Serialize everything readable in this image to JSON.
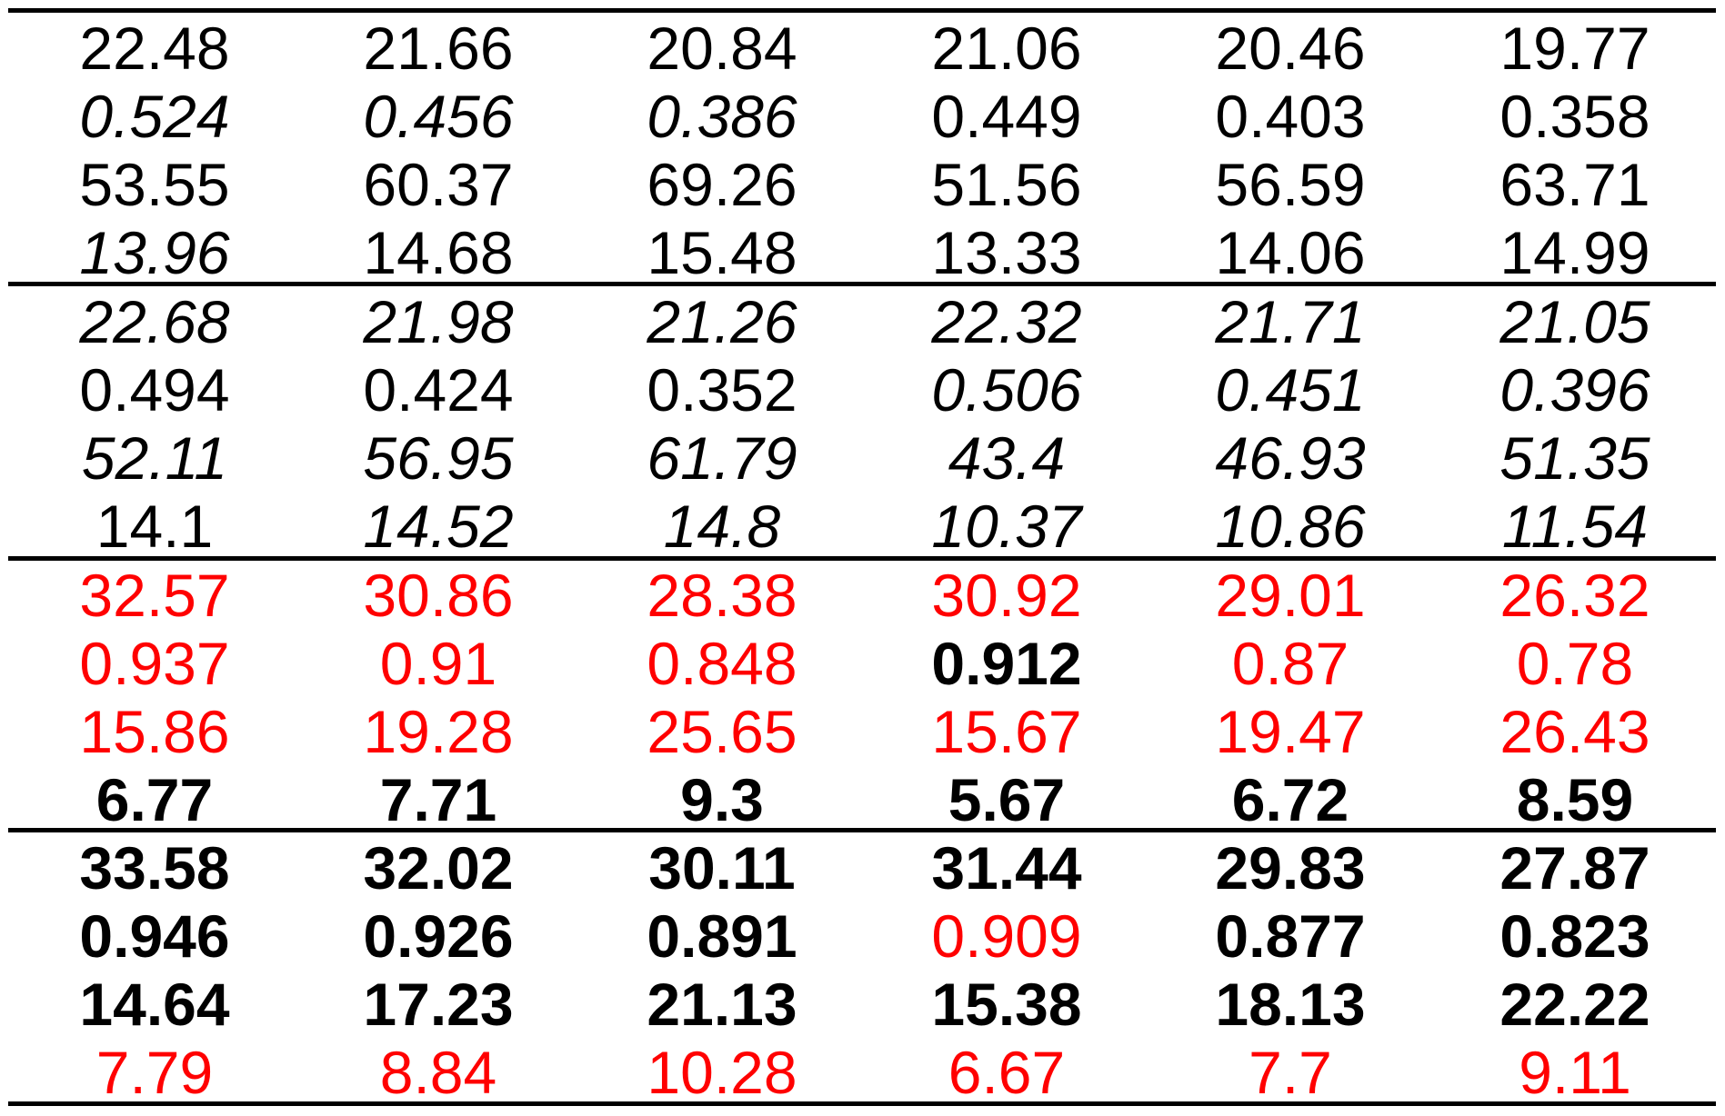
{
  "colors": {
    "black": "#000000",
    "red": "#ff0000"
  },
  "rows": [
    [
      {
        "v": "22.48"
      },
      {
        "v": "21.66"
      },
      {
        "v": "20.84"
      },
      {
        "v": "21.06"
      },
      {
        "v": "20.46"
      },
      {
        "v": "19.77"
      }
    ],
    [
      {
        "v": "0.524",
        "s": "italic"
      },
      {
        "v": "0.456",
        "s": "italic"
      },
      {
        "v": "0.386",
        "s": "italic"
      },
      {
        "v": "0.449"
      },
      {
        "v": "0.403"
      },
      {
        "v": "0.358"
      }
    ],
    [
      {
        "v": "53.55"
      },
      {
        "v": "60.37"
      },
      {
        "v": "69.26"
      },
      {
        "v": "51.56"
      },
      {
        "v": "56.59"
      },
      {
        "v": "63.71"
      }
    ],
    [
      {
        "v": "13.96",
        "s": "italic"
      },
      {
        "v": "14.68"
      },
      {
        "v": "15.48"
      },
      {
        "v": "13.33"
      },
      {
        "v": "14.06"
      },
      {
        "v": "14.99"
      }
    ],
    [
      {
        "v": "22.68",
        "s": "italic"
      },
      {
        "v": "21.98",
        "s": "italic"
      },
      {
        "v": "21.26",
        "s": "italic"
      },
      {
        "v": "22.32",
        "s": "italic"
      },
      {
        "v": "21.71",
        "s": "italic"
      },
      {
        "v": "21.05",
        "s": "italic"
      }
    ],
    [
      {
        "v": "0.494"
      },
      {
        "v": "0.424"
      },
      {
        "v": "0.352"
      },
      {
        "v": "0.506",
        "s": "italic"
      },
      {
        "v": "0.451",
        "s": "italic"
      },
      {
        "v": "0.396",
        "s": "italic"
      }
    ],
    [
      {
        "v": "52.11",
        "s": "italic"
      },
      {
        "v": "56.95",
        "s": "italic"
      },
      {
        "v": "61.79",
        "s": "italic"
      },
      {
        "v": "43.4",
        "s": "italic"
      },
      {
        "v": "46.93",
        "s": "italic"
      },
      {
        "v": "51.35",
        "s": "italic"
      }
    ],
    [
      {
        "v": "14.1"
      },
      {
        "v": "14.52",
        "s": "italic"
      },
      {
        "v": "14.8",
        "s": "italic"
      },
      {
        "v": "10.37",
        "s": "italic"
      },
      {
        "v": "10.86",
        "s": "italic"
      },
      {
        "v": "11.54",
        "s": "italic"
      }
    ],
    [
      {
        "v": "32.57",
        "s": "red"
      },
      {
        "v": "30.86",
        "s": "red"
      },
      {
        "v": "28.38",
        "s": "red"
      },
      {
        "v": "30.92",
        "s": "red"
      },
      {
        "v": "29.01",
        "s": "red"
      },
      {
        "v": "26.32",
        "s": "red"
      }
    ],
    [
      {
        "v": "0.937",
        "s": "red"
      },
      {
        "v": "0.91",
        "s": "red"
      },
      {
        "v": "0.848",
        "s": "red"
      },
      {
        "v": "0.912",
        "s": "bold"
      },
      {
        "v": "0.87",
        "s": "red"
      },
      {
        "v": "0.78",
        "s": "red"
      }
    ],
    [
      {
        "v": "15.86",
        "s": "red"
      },
      {
        "v": "19.28",
        "s": "red"
      },
      {
        "v": "25.65",
        "s": "red"
      },
      {
        "v": "15.67",
        "s": "red"
      },
      {
        "v": "19.47",
        "s": "red"
      },
      {
        "v": "26.43",
        "s": "red"
      }
    ],
    [
      {
        "v": "6.77",
        "s": "bold"
      },
      {
        "v": "7.71",
        "s": "bold"
      },
      {
        "v": "9.3",
        "s": "bold"
      },
      {
        "v": "5.67",
        "s": "bold"
      },
      {
        "v": "6.72",
        "s": "bold"
      },
      {
        "v": "8.59",
        "s": "bold"
      }
    ],
    [
      {
        "v": "33.58",
        "s": "bold"
      },
      {
        "v": "32.02",
        "s": "bold"
      },
      {
        "v": "30.11",
        "s": "bold"
      },
      {
        "v": "31.44",
        "s": "bold"
      },
      {
        "v": "29.83",
        "s": "bold"
      },
      {
        "v": "27.87",
        "s": "bold"
      }
    ],
    [
      {
        "v": "0.946",
        "s": "bold"
      },
      {
        "v": "0.926",
        "s": "bold"
      },
      {
        "v": "0.891",
        "s": "bold"
      },
      {
        "v": "0.909",
        "s": "red"
      },
      {
        "v": "0.877",
        "s": "bold"
      },
      {
        "v": "0.823",
        "s": "bold"
      }
    ],
    [
      {
        "v": "14.64",
        "s": "bold"
      },
      {
        "v": "17.23",
        "s": "bold"
      },
      {
        "v": "21.13",
        "s": "bold"
      },
      {
        "v": "15.38",
        "s": "bold"
      },
      {
        "v": "18.13",
        "s": "bold"
      },
      {
        "v": "22.22",
        "s": "bold"
      }
    ],
    [
      {
        "v": "7.79",
        "s": "red"
      },
      {
        "v": "8.84",
        "s": "red"
      },
      {
        "v": "10.28",
        "s": "red"
      },
      {
        "v": "6.67",
        "s": "red"
      },
      {
        "v": "7.7",
        "s": "red"
      },
      {
        "v": "9.11",
        "s": "red"
      }
    ]
  ]
}
